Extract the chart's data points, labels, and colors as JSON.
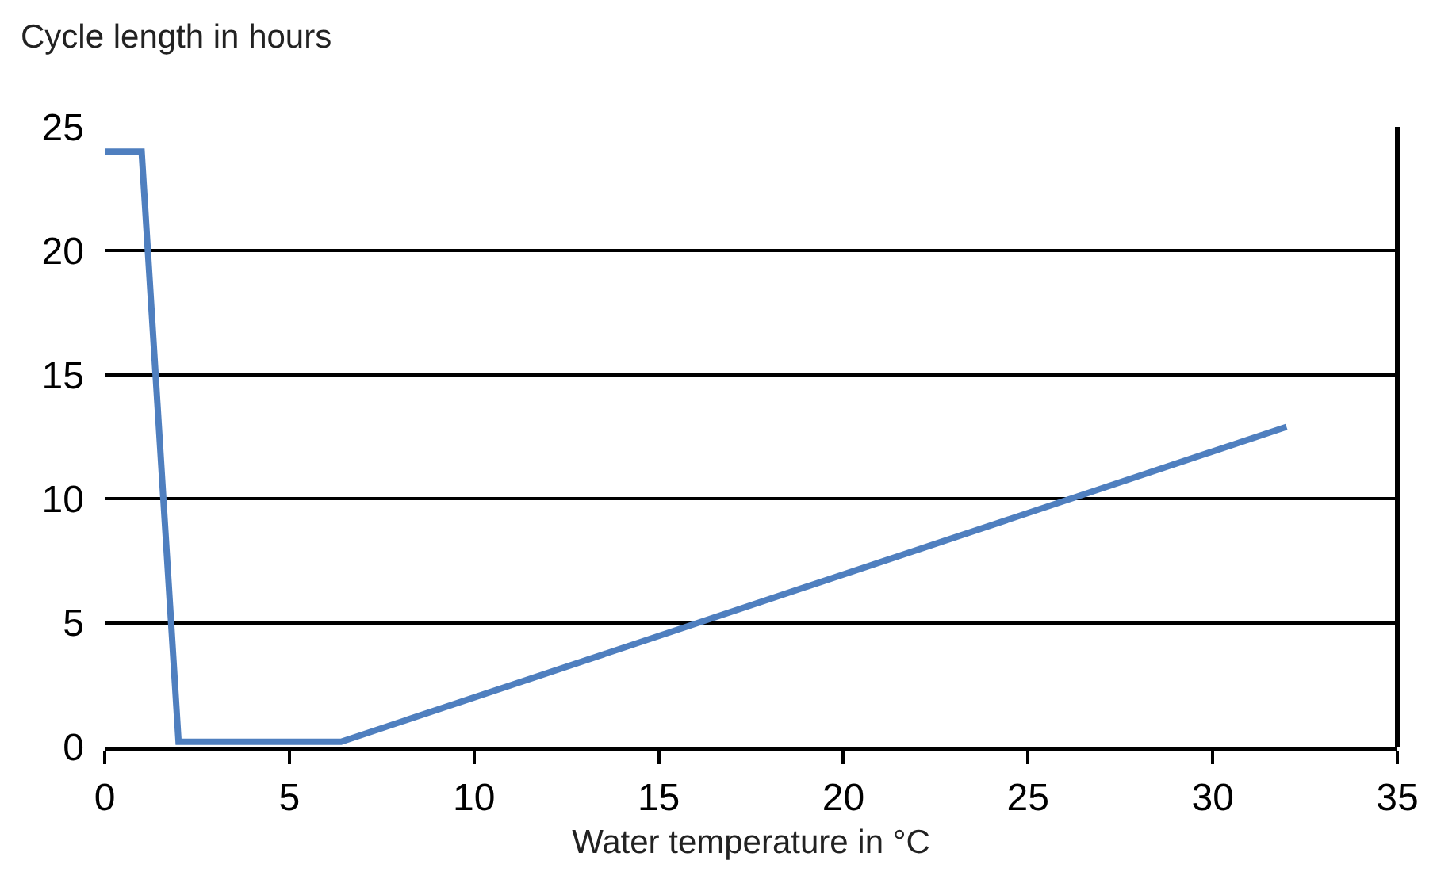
{
  "chart_data": {
    "type": "line",
    "xlabel": "Water temperature in °C",
    "ylabel": "Cycle length in hours",
    "x": [
      0,
      1,
      2,
      6.4,
      32
    ],
    "series": [
      {
        "color": "#4f7fbf",
        "values": [
          24,
          24,
          0.2,
          0.2,
          12.9
        ]
      }
    ],
    "xlim": [
      0,
      35
    ],
    "xticks": [
      0,
      5,
      10,
      15,
      20,
      25,
      30,
      35
    ],
    "ylim": [
      0,
      25
    ],
    "yticks": [
      0,
      5,
      10,
      15,
      20,
      25
    ],
    "grid": "y",
    "legend": false,
    "marker": "none",
    "line_style": "solid"
  }
}
